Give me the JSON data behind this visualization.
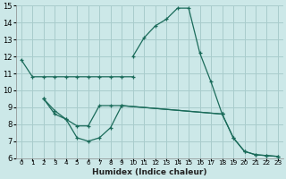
{
  "xlabel": "Humidex (Indice chaleur)",
  "xlim": [
    -0.5,
    23.5
  ],
  "ylim": [
    6,
    15
  ],
  "xticks": [
    0,
    1,
    2,
    3,
    4,
    5,
    6,
    7,
    8,
    9,
    10,
    11,
    12,
    13,
    14,
    15,
    16,
    17,
    18,
    19,
    20,
    21,
    22,
    23
  ],
  "yticks": [
    6,
    7,
    8,
    9,
    10,
    11,
    12,
    13,
    14,
    15
  ],
  "background_color": "#cce8e8",
  "grid_color": "#a8cccc",
  "line_color": "#1a6b5a",
  "series": [
    {
      "x": [
        0,
        1,
        2,
        3,
        4,
        5,
        6,
        7,
        8,
        9,
        10
      ],
      "y": [
        11.8,
        10.8,
        10.8,
        10.8,
        10.8,
        10.8,
        10.8,
        10.8,
        10.8,
        10.8,
        10.8
      ]
    },
    {
      "x": [
        10,
        11,
        12,
        13,
        14,
        15,
        16,
        17,
        18
      ],
      "y": [
        12.0,
        13.1,
        13.8,
        14.2,
        14.85,
        14.85,
        12.2,
        10.5,
        8.6
      ]
    },
    {
      "x": [
        2,
        3,
        4,
        5,
        6,
        7,
        8,
        9,
        18,
        19,
        20,
        21,
        22,
        23
      ],
      "y": [
        9.5,
        8.8,
        8.3,
        7.9,
        7.9,
        9.1,
        9.1,
        9.1,
        8.6,
        7.2,
        6.4,
        6.2,
        6.15,
        6.1
      ]
    },
    {
      "x": [
        2,
        3,
        4,
        5,
        6,
        7,
        8,
        9,
        18,
        19,
        20,
        21,
        22,
        23
      ],
      "y": [
        9.5,
        8.6,
        8.3,
        7.2,
        7.0,
        7.2,
        7.8,
        9.1,
        8.6,
        7.2,
        6.4,
        6.2,
        6.15,
        6.1
      ]
    }
  ],
  "font_size_xlabel": 6.5,
  "font_size_ticks_x": 5.2,
  "font_size_ticks_y": 6.0
}
